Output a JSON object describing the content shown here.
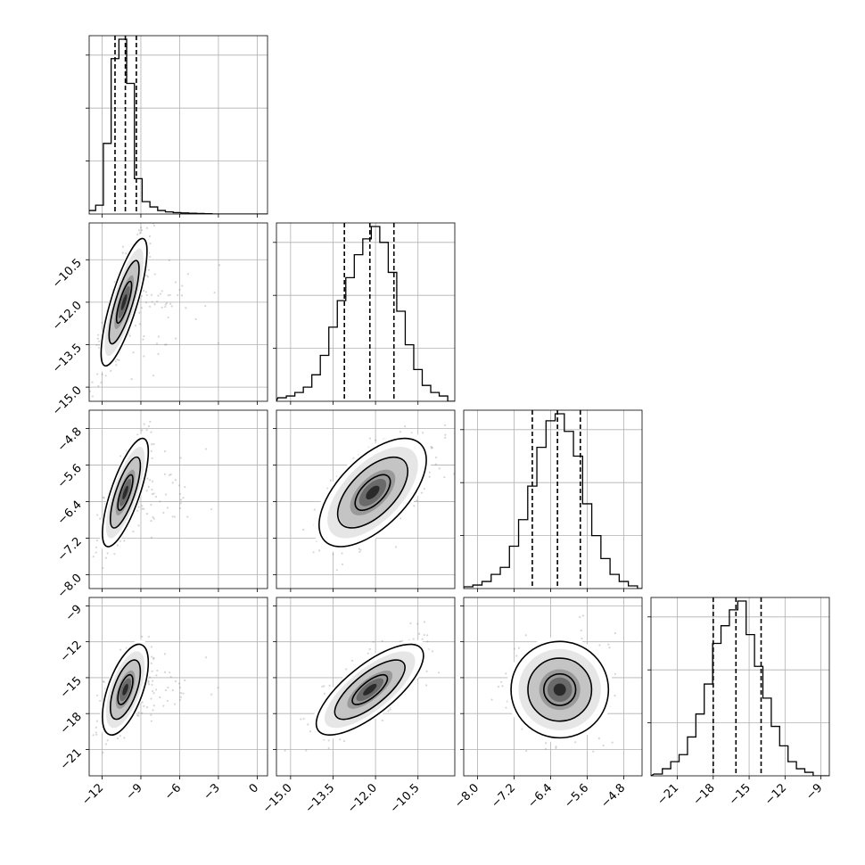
{
  "chart_data": {
    "type": "corner",
    "parameters": [
      {
        "ticks": [
          -12,
          -9,
          -6,
          -3,
          0
        ],
        "tick_labels": [
          "−12",
          "−9",
          "−6",
          "−3",
          "0"
        ],
        "range": [
          -13.0,
          0.8
        ],
        "quantiles": [
          -11.0,
          -10.2,
          -9.35
        ],
        "hist_x": [
          -12.8,
          -12.2,
          -11.6,
          -11.0,
          -10.4,
          -9.8,
          -9.2,
          -8.6,
          -8.0,
          -7.4,
          -6.8,
          -6.2,
          -5.6,
          -5.0,
          -4.4,
          -3.8
        ],
        "hist_y": [
          0.02,
          0.05,
          0.4,
          0.88,
          0.99,
          0.74,
          0.2,
          0.07,
          0.04,
          0.02,
          0.012,
          0.008,
          0.006,
          0.004,
          0.003,
          0.002
        ],
        "mode": -10.1
      },
      {
        "ticks": [
          -15.0,
          -13.5,
          -12.0,
          -10.5
        ],
        "tick_labels": [
          "−15.0",
          "−13.5",
          "−12.0",
          "−10.5"
        ],
        "range": [
          -15.5,
          -9.2
        ],
        "quantiles": [
          -13.1,
          -12.2,
          -11.35
        ],
        "hist_x": [
          -15.3,
          -15.0,
          -14.7,
          -14.4,
          -14.1,
          -13.8,
          -13.5,
          -13.2,
          -12.9,
          -12.6,
          -12.3,
          -12.0,
          -11.7,
          -11.4,
          -11.1,
          -10.8,
          -10.5,
          -10.2,
          -9.9,
          -9.6
        ],
        "hist_y": [
          0.02,
          0.03,
          0.05,
          0.08,
          0.15,
          0.26,
          0.42,
          0.57,
          0.7,
          0.83,
          0.92,
          0.99,
          0.9,
          0.73,
          0.51,
          0.32,
          0.18,
          0.09,
          0.05,
          0.03
        ],
        "mode": -12.1
      },
      {
        "ticks": [
          -8.0,
          -7.2,
          -6.4,
          -5.6,
          -4.8
        ],
        "tick_labels": [
          "−8.0",
          "−7.2",
          "−6.4",
          "−5.6",
          "−4.8"
        ],
        "range": [
          -8.3,
          -4.4
        ],
        "quantiles": [
          -6.8,
          -6.25,
          -5.75
        ],
        "hist_x": [
          -8.2,
          -8.0,
          -7.8,
          -7.6,
          -7.4,
          -7.2,
          -7.0,
          -6.8,
          -6.6,
          -6.4,
          -6.2,
          -6.0,
          -5.8,
          -5.6,
          -5.4,
          -5.2,
          -5.0,
          -4.8,
          -4.6
        ],
        "hist_y": [
          0.01,
          0.02,
          0.04,
          0.08,
          0.12,
          0.24,
          0.39,
          0.58,
          0.8,
          0.95,
          0.99,
          0.89,
          0.75,
          0.48,
          0.3,
          0.17,
          0.08,
          0.04,
          0.015
        ],
        "mode": -6.3
      },
      {
        "ticks": [
          -21,
          -18,
          -15,
          -12,
          -9
        ],
        "tick_labels": [
          "−21",
          "−18",
          "−15",
          "−12",
          "−9"
        ],
        "range": [
          -23.2,
          -8.3
        ],
        "quantiles": [
          -18.0,
          -16.1,
          -14.0
        ],
        "hist_x": [
          -22.6,
          -21.9,
          -21.2,
          -20.5,
          -19.8,
          -19.1,
          -18.4,
          -17.7,
          -17.0,
          -16.3,
          -15.6,
          -14.9,
          -14.2,
          -13.5,
          -12.8,
          -12.1,
          -11.4,
          -10.7,
          -10.0
        ],
        "hist_y": [
          0.01,
          0.04,
          0.08,
          0.12,
          0.22,
          0.35,
          0.52,
          0.75,
          0.85,
          0.94,
          0.99,
          0.8,
          0.62,
          0.44,
          0.28,
          0.17,
          0.08,
          0.04,
          0.02
        ],
        "mode": -15.8
      }
    ],
    "pairs": [
      {
        "col": 0,
        "row": 1,
        "cx": -10.3,
        "cy": -12.0,
        "sx": 0.75,
        "sy": 0.95,
        "rho": 0.8,
        "sx_tail": 3.0
      },
      {
        "col": 0,
        "row": 2,
        "cx": -10.2,
        "cy": -6.2,
        "sx": 0.75,
        "sy": 0.5,
        "rho": 0.75,
        "sx_tail": 3.0
      },
      {
        "col": 1,
        "row": 2,
        "cx": -12.1,
        "cy": -6.2,
        "sx": 0.8,
        "sy": 0.5,
        "rho": 0.6,
        "sx_tail": 0.8
      },
      {
        "col": 0,
        "row": 3,
        "cx": -10.2,
        "cy": -16.0,
        "sx": 0.75,
        "sy": 1.6,
        "rho": 0.6,
        "sx_tail": 3.0
      },
      {
        "col": 1,
        "row": 3,
        "cx": -12.2,
        "cy": -16.0,
        "sx": 0.8,
        "sy": 1.6,
        "rho": 0.75,
        "sx_tail": 0.8
      },
      {
        "col": 2,
        "row": 3,
        "cx": -6.2,
        "cy": -16.0,
        "sx": 0.45,
        "sy": 1.7,
        "rho": 0.0,
        "sx_tail": 0.45
      }
    ],
    "grid": true,
    "levels": [
      0.39,
      0.86,
      0.99
    ]
  }
}
